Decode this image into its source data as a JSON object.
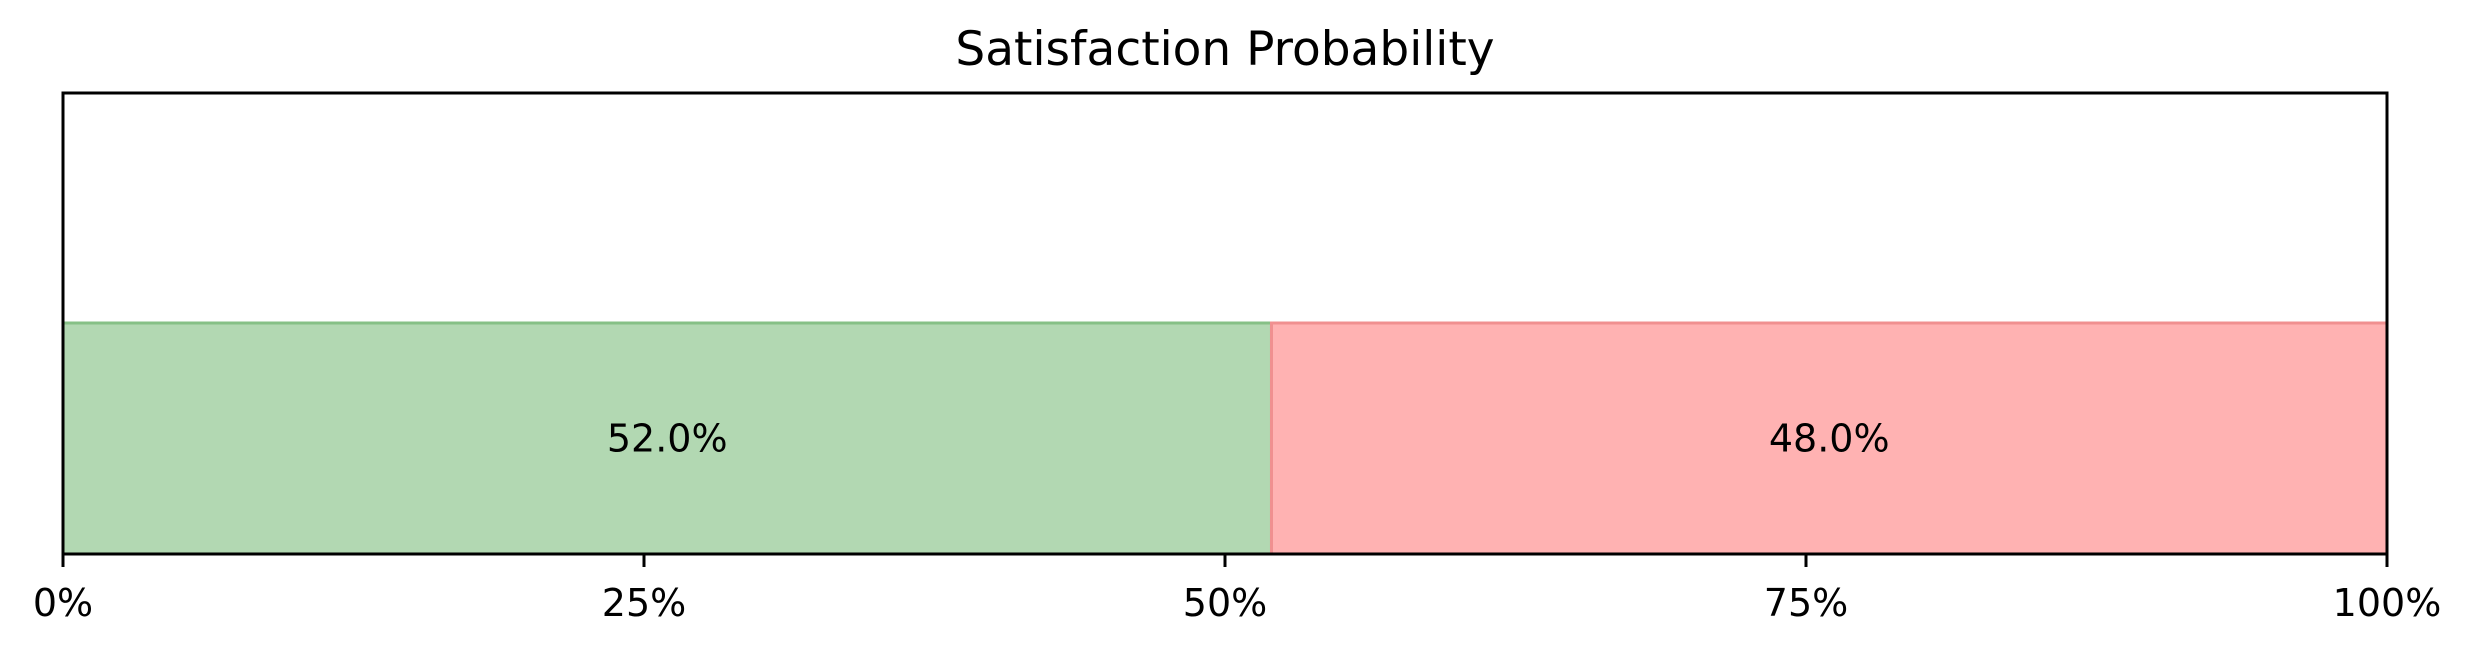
{
  "chart_data": {
    "type": "bar",
    "orientation": "horizontal-stacked",
    "title": "Satisfaction Probability",
    "xlim": [
      0,
      100
    ],
    "x_tick_labels": [
      "0%",
      "25%",
      "50%",
      "75%",
      "100%"
    ],
    "x_ticks": [
      0,
      25,
      50,
      75,
      100
    ],
    "segments": [
      {
        "value": 52.0,
        "label": "52.0%",
        "color": "#b2d8b2"
      },
      {
        "value": 48.0,
        "label": "48.0%",
        "color": "#ffb2b2"
      }
    ],
    "grid": false,
    "legend": "none"
  }
}
